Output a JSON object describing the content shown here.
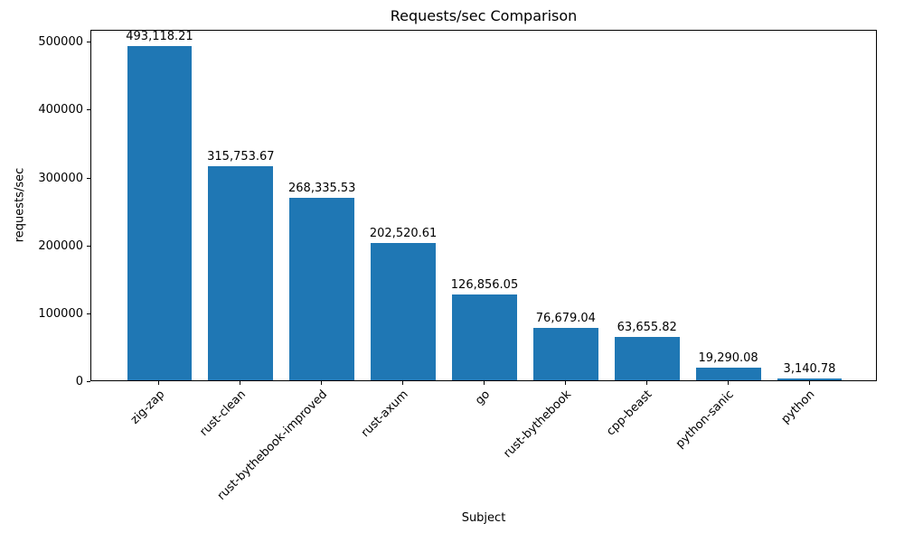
{
  "chart_data": {
    "type": "bar",
    "title": "Requests/sec Comparison",
    "xlabel": "Subject",
    "ylabel": "requests/sec",
    "categories": [
      "zig-zap",
      "rust-clean",
      "rust-bythebook-improved",
      "rust-axum",
      "go",
      "rust-bythebook",
      "cpp-beast",
      "python-sanic",
      "python"
    ],
    "values": [
      493118.21,
      315753.67,
      268335.53,
      202520.61,
      126856.05,
      76679.04,
      63655.82,
      19290.08,
      3140.78
    ],
    "bar_labels": [
      "493,118.21",
      "315,753.67",
      "268,335.53",
      "202,520.61",
      "126,856.05",
      "76,679.04",
      "63,655.82",
      "19,290.08",
      "3,140.78"
    ],
    "y_ticks": [
      0,
      100000,
      200000,
      300000,
      400000,
      500000
    ],
    "y_tick_labels": [
      "0",
      "100000",
      "200000",
      "300000",
      "400000",
      "500000"
    ],
    "ylim": [
      0,
      517774
    ],
    "bar_color": "#1f77b4",
    "axis_color": "#000000",
    "background_color": "#ffffff",
    "grid": false,
    "legend": null
  }
}
